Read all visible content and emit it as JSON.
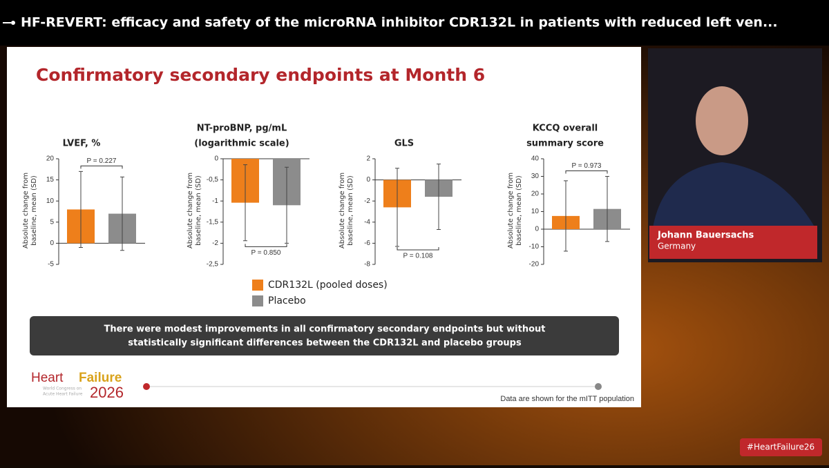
{
  "header": {
    "title": "HF-REVERT: efficacy and safety of the microRNA inhibitor CDR132L in patients with reduced left ven..."
  },
  "slide": {
    "title": "Confirmatory secondary endpoints at Month 6",
    "y_label_lines": [
      "Absolute change from",
      "baseline, mean (SD)"
    ],
    "legend": [
      {
        "name": "CDR132L (pooled doses)",
        "color": "#ee7f1b"
      },
      {
        "name": "Placebo",
        "color": "#8c8c8c"
      }
    ],
    "conclusion_lines": [
      "There were modest improvements in all confirmatory secondary endpoints but without",
      "statistically significant differences between the CDR132L and placebo groups"
    ],
    "footnote": "Data are shown for the mITT population",
    "logo": {
      "word1": "Heart",
      "word2": "Failure",
      "year": "2026",
      "sub_lines": [
        "World Congress on",
        "Acute Heart Failure"
      ]
    }
  },
  "chart_data": [
    {
      "type": "bar",
      "title_lines": [
        "LVEF, %"
      ],
      "values": [
        8,
        7
      ],
      "errors": [
        9,
        8.7
      ],
      "p_label": "P = 0.227",
      "p_position": "top",
      "ylim": [
        -5,
        20
      ],
      "yticks": [
        -5,
        0,
        5,
        10,
        15,
        20
      ]
    },
    {
      "type": "bar",
      "title_lines": [
        "NT-proBNP, pg/mL",
        "(logarithmic scale)"
      ],
      "values": [
        -1.04,
        -1.1
      ],
      "errors": [
        0.9,
        0.9
      ],
      "p_label": "P = 0.850",
      "p_position": "bottom",
      "ylim": [
        -2.5,
        0
      ],
      "yticks": [
        {
          "value": -2.5,
          "label": "-2,5"
        },
        -2,
        {
          "value": -1.5,
          "label": "-1,5"
        },
        -1,
        {
          "value": -0.5,
          "label": "-0,5"
        },
        0
      ]
    },
    {
      "type": "bar",
      "title_lines": [
        "GLS"
      ],
      "values": [
        -2.6,
        -1.6
      ],
      "errors": [
        3.7,
        3.1
      ],
      "p_label": "P = 0.108",
      "p_position": "bottom",
      "ylim": [
        -8,
        2
      ],
      "yticks": [
        -8,
        -6,
        -4,
        -2,
        0,
        2
      ]
    },
    {
      "type": "bar",
      "title_lines": [
        "KCCQ overall",
        "summary score"
      ],
      "values": [
        7.5,
        11.5
      ],
      "errors": [
        20,
        18.5
      ],
      "p_label": "P = 0.973",
      "p_position": "top",
      "ylim": [
        -20,
        40
      ],
      "yticks": [
        -20,
        -10,
        0,
        10,
        20,
        30,
        40
      ]
    }
  ],
  "speaker": {
    "name": "Johann Bauersachs",
    "country": "Germany"
  },
  "hashtag": "#HeartFailure26"
}
